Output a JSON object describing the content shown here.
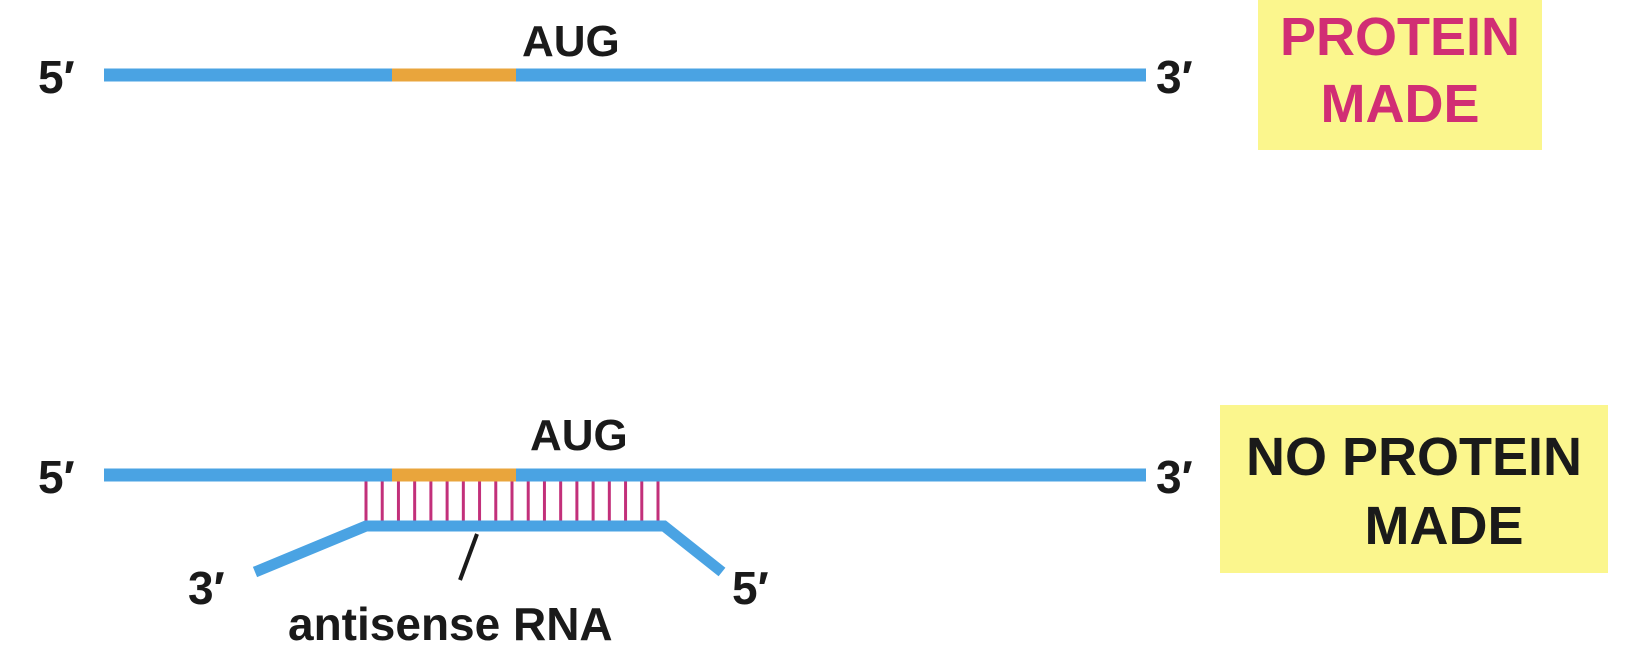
{
  "colors": {
    "rna_strand": "#4aa3e3",
    "aug_codon": "#e9a53c",
    "base_pairs": "#c2307a",
    "label_text": "#1a1a1a",
    "result_box": "#fbf68d",
    "protein_made_text": "#d12e74",
    "no_protein_text": "#1a1a1a"
  },
  "top": {
    "five_prime": "5′",
    "three_prime": "3′",
    "codon": "AUG",
    "result_line1": "PROTEIN",
    "result_line2": "MADE"
  },
  "bottom": {
    "five_prime": "5′",
    "three_prime": "3′",
    "codon": "AUG",
    "antisense_three_prime": "3′",
    "antisense_five_prime": "5′",
    "antisense_label": "antisense RNA",
    "result_line1": "NO PROTEIN",
    "result_line2": "MADE"
  }
}
